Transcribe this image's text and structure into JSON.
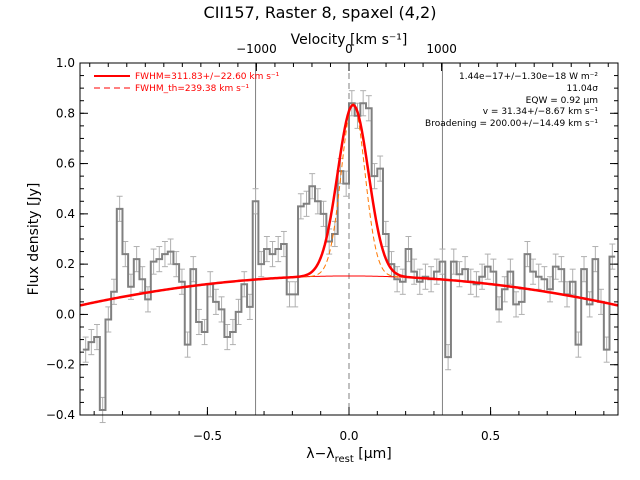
{
  "chart_data": {
    "type": "line",
    "title": "CII157, Raster 8, spaxel (4,2)",
    "xlabel": "λ−λ_rest [μm]",
    "xlabel_main": "λ−λ",
    "xlabel_sub": "rest",
    "xlabel_unit": " [μm]",
    "ylabel": "Flux density [Jy]",
    "top_axis_label": "Velocity [km s⁻¹]",
    "xlim": [
      -0.95,
      0.95
    ],
    "ylim": [
      -0.4,
      1.0
    ],
    "x_ticks": [
      -0.5,
      0.0,
      0.5
    ],
    "x_tick_labels": [
      "−0.5",
      "0.0",
      "0.5"
    ],
    "y_ticks": [
      -0.4,
      -0.2,
      0.0,
      0.2,
      0.4,
      0.6,
      0.8,
      1.0
    ],
    "y_tick_labels": [
      "−0.4",
      "−0.2",
      "0.0",
      "0.2",
      "0.4",
      "0.6",
      "0.8",
      "1.0"
    ],
    "top_ticks_velocity": [
      -1000,
      0,
      1000
    ],
    "top_tick_labels": [
      "−1000",
      "0",
      "1000"
    ],
    "vertical_lines_x": [
      -0.33,
      0.0,
      0.33
    ],
    "legend": [
      {
        "label": "FWHM=311.83+/−22.60 km s⁻¹",
        "style": "solid",
        "color": "#ff0000"
      },
      {
        "label": "FWHM_th=239.38 km s⁻¹",
        "style": "dashed",
        "color": "#ff0000"
      }
    ],
    "annotations": [
      "1.44e−17+/−1.30e−18 W m⁻²",
      "11.04σ",
      "EQW = 0.92 μm",
      "v = 31.34+/−8.67 km s⁻¹",
      "Broadening = 200.00+/−14.49 km s⁻¹"
    ],
    "series": [
      {
        "type": "step",
        "color": "#808080",
        "x": [
          -0.93,
          -0.91,
          -0.89,
          -0.87,
          -0.85,
          -0.83,
          -0.81,
          -0.79,
          -0.77,
          -0.75,
          -0.73,
          -0.71,
          -0.69,
          -0.67,
          -0.65,
          -0.63,
          -0.61,
          -0.59,
          -0.57,
          -0.55,
          -0.53,
          -0.51,
          -0.49,
          -0.47,
          -0.45,
          -0.43,
          -0.41,
          -0.39,
          -0.37,
          -0.35,
          -0.33,
          -0.31,
          -0.29,
          -0.27,
          -0.25,
          -0.23,
          -0.21,
          -0.19,
          -0.17,
          -0.15,
          -0.13,
          -0.11,
          -0.09,
          -0.07,
          -0.05,
          -0.03,
          -0.01,
          0.01,
          0.03,
          0.05,
          0.07,
          0.09,
          0.11,
          0.13,
          0.15,
          0.17,
          0.19,
          0.21,
          0.23,
          0.25,
          0.27,
          0.29,
          0.31,
          0.33,
          0.35,
          0.37,
          0.39,
          0.41,
          0.43,
          0.45,
          0.47,
          0.49,
          0.51,
          0.53,
          0.55,
          0.57,
          0.59,
          0.61,
          0.63,
          0.65,
          0.67,
          0.69,
          0.71,
          0.73,
          0.75,
          0.77,
          0.79,
          0.81,
          0.83,
          0.85,
          0.87,
          0.89,
          0.91,
          0.93
        ],
        "y": [
          -0.14,
          -0.11,
          -0.09,
          -0.38,
          -0.02,
          0.09,
          0.42,
          0.24,
          0.11,
          0.22,
          0.14,
          0.06,
          0.21,
          0.22,
          0.24,
          0.25,
          0.2,
          0.13,
          -0.12,
          0.18,
          -0.03,
          -0.07,
          0.12,
          0.05,
          0.02,
          -0.09,
          -0.07,
          0.01,
          0.12,
          0.03,
          0.45,
          0.2,
          0.26,
          0.24,
          0.26,
          0.28,
          0.08,
          0.08,
          0.43,
          0.44,
          0.51,
          0.45,
          0.4,
          0.29,
          0.32,
          0.57,
          0.52,
          0.84,
          0.79,
          0.84,
          0.82,
          0.55,
          0.58,
          0.32,
          0.2,
          0.14,
          0.13,
          0.26,
          0.17,
          0.13,
          0.15,
          0.14,
          0.17,
          0.21,
          -0.17,
          0.21,
          0.16,
          0.18,
          0.13,
          0.12,
          0.15,
          0.19,
          0.17,
          0.02,
          0.1,
          0.17,
          0.04,
          0.05,
          0.24,
          0.17,
          0.15,
          0.14,
          0.1,
          0.19,
          0.18,
          0.08,
          0.13,
          -0.12,
          0.18,
          0.04,
          0.22,
          0.05,
          -0.14,
          0.23
        ]
      }
    ]
  }
}
